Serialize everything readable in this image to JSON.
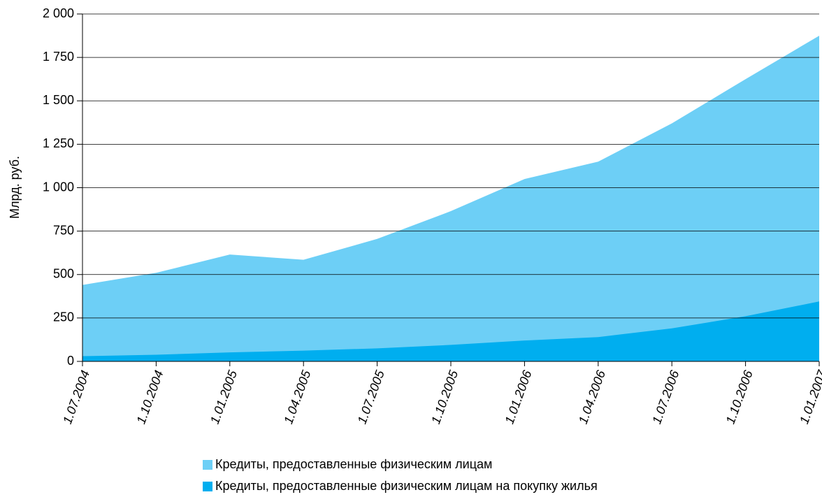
{
  "chart_data": {
    "type": "area",
    "y_label": "Млрд. руб.",
    "categories": [
      "1.07.2004",
      "1.10.2004",
      "1.01.2005",
      "1.04.2005",
      "1.07.2005",
      "1.10.2005",
      "1.01.2006",
      "1.04.2006",
      "1.07.2006",
      "1.10.2006",
      "1.01.2007"
    ],
    "series": [
      {
        "name": "Кредиты, предоставленные физическим лицам",
        "color": "#6dcff6",
        "values": [
          440,
          510,
          615,
          585,
          705,
          865,
          1050,
          1150,
          1370,
          1625,
          1875
        ]
      },
      {
        "name": "Кредиты, предоставленные физическим лицам на покупку жилья",
        "color": "#00aeef",
        "values": [
          30,
          38,
          52,
          62,
          75,
          95,
          120,
          140,
          190,
          260,
          345
        ]
      }
    ],
    "ylim": [
      0,
      2000
    ],
    "yticks": [
      0,
      250,
      500,
      750,
      {
        "value": 1000,
        "label": "1 000"
      },
      {
        "value": 1250,
        "label": "1 250"
      },
      {
        "value": 1500,
        "label": "1 500"
      },
      {
        "value": 1750,
        "label": "1 750"
      },
      {
        "value": 2000,
        "label": "2 000"
      }
    ],
    "grid": true
  }
}
